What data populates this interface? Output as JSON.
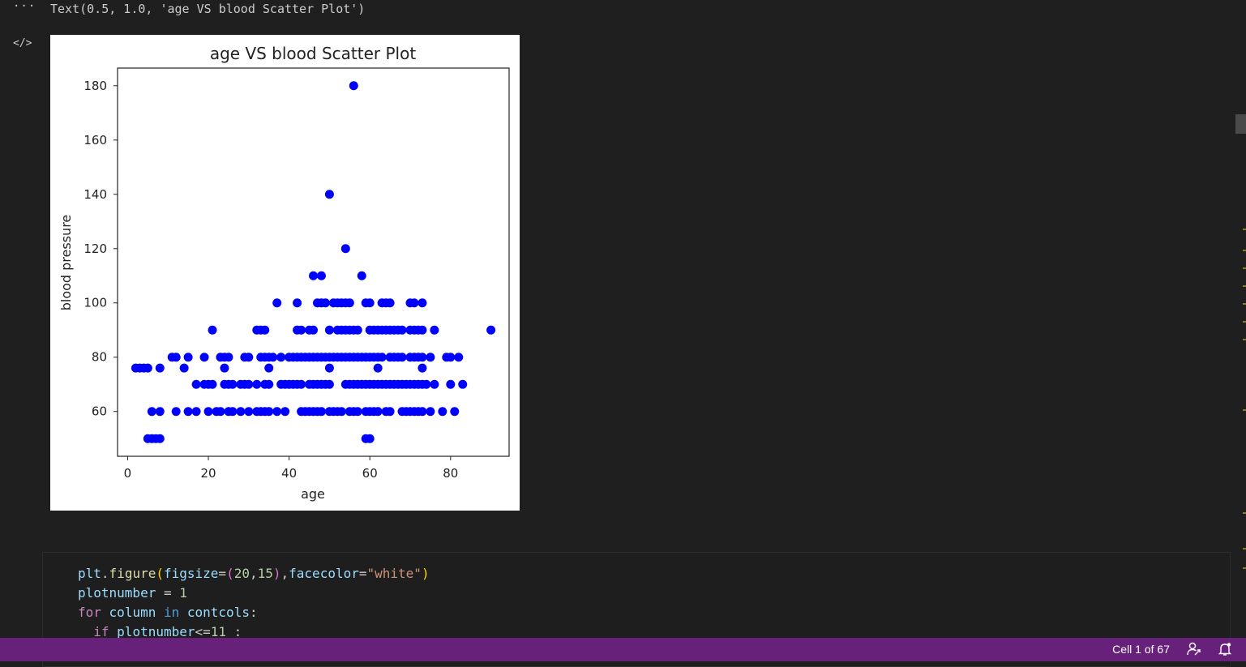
{
  "output": {
    "more_label": "···",
    "code_toggle_label": "</>",
    "text_line": "Text(0.5, 1.0, 'age VS blood Scatter Plot')"
  },
  "chart_data": {
    "type": "scatter",
    "title": "age VS blood Scatter Plot",
    "xlabel": "age",
    "ylabel": "blood pressure",
    "xlim": [
      -2.5,
      94.5
    ],
    "ylim": [
      43.5,
      186.5
    ],
    "xticks": [
      0,
      20,
      40,
      60,
      80
    ],
    "yticks": [
      60,
      80,
      100,
      120,
      140,
      160,
      180
    ],
    "color": "#0000ff",
    "points": [
      [
        2,
        76
      ],
      [
        3,
        76
      ],
      [
        4,
        76
      ],
      [
        5,
        76
      ],
      [
        8,
        76
      ],
      [
        14,
        76
      ],
      [
        24,
        76
      ],
      [
        35,
        76
      ],
      [
        50,
        76
      ],
      [
        62,
        76
      ],
      [
        73,
        76
      ],
      [
        5,
        50
      ],
      [
        6,
        50
      ],
      [
        7,
        50
      ],
      [
        8,
        50
      ],
      [
        59,
        50
      ],
      [
        60,
        50
      ],
      [
        6,
        60
      ],
      [
        8,
        60
      ],
      [
        12,
        60
      ],
      [
        15,
        60
      ],
      [
        17,
        60
      ],
      [
        20,
        60
      ],
      [
        22,
        60
      ],
      [
        23,
        60
      ],
      [
        25,
        60
      ],
      [
        26,
        60
      ],
      [
        28,
        60
      ],
      [
        30,
        60
      ],
      [
        32,
        60
      ],
      [
        33,
        60
      ],
      [
        34,
        60
      ],
      [
        35,
        60
      ],
      [
        37,
        60
      ],
      [
        39,
        60
      ],
      [
        43,
        60
      ],
      [
        44,
        60
      ],
      [
        45,
        60
      ],
      [
        46,
        60
      ],
      [
        47,
        60
      ],
      [
        48,
        60
      ],
      [
        50,
        60
      ],
      [
        51,
        60
      ],
      [
        52,
        60
      ],
      [
        53,
        60
      ],
      [
        55,
        60
      ],
      [
        56,
        60
      ],
      [
        57,
        60
      ],
      [
        59,
        60
      ],
      [
        60,
        60
      ],
      [
        61,
        60
      ],
      [
        62,
        60
      ],
      [
        64,
        60
      ],
      [
        65,
        60
      ],
      [
        68,
        60
      ],
      [
        69,
        60
      ],
      [
        70,
        60
      ],
      [
        71,
        60
      ],
      [
        72,
        60
      ],
      [
        73,
        60
      ],
      [
        75,
        60
      ],
      [
        78,
        60
      ],
      [
        81,
        60
      ],
      [
        17,
        70
      ],
      [
        19,
        70
      ],
      [
        20,
        70
      ],
      [
        21,
        70
      ],
      [
        24,
        70
      ],
      [
        25,
        70
      ],
      [
        26,
        70
      ],
      [
        28,
        70
      ],
      [
        29,
        70
      ],
      [
        30,
        70
      ],
      [
        32,
        70
      ],
      [
        34,
        70
      ],
      [
        35,
        70
      ],
      [
        38,
        70
      ],
      [
        39,
        70
      ],
      [
        40,
        70
      ],
      [
        41,
        70
      ],
      [
        42,
        70
      ],
      [
        43,
        70
      ],
      [
        45,
        70
      ],
      [
        46,
        70
      ],
      [
        47,
        70
      ],
      [
        48,
        70
      ],
      [
        49,
        70
      ],
      [
        50,
        70
      ],
      [
        54,
        70
      ],
      [
        55,
        70
      ],
      [
        56,
        70
      ],
      [
        57,
        70
      ],
      [
        58,
        70
      ],
      [
        59,
        70
      ],
      [
        60,
        70
      ],
      [
        61,
        70
      ],
      [
        62,
        70
      ],
      [
        63,
        70
      ],
      [
        64,
        70
      ],
      [
        65,
        70
      ],
      [
        66,
        70
      ],
      [
        67,
        70
      ],
      [
        68,
        70
      ],
      [
        69,
        70
      ],
      [
        70,
        70
      ],
      [
        71,
        70
      ],
      [
        72,
        70
      ],
      [
        73,
        70
      ],
      [
        74,
        70
      ],
      [
        76,
        70
      ],
      [
        80,
        70
      ],
      [
        83,
        70
      ],
      [
        11,
        80
      ],
      [
        12,
        80
      ],
      [
        15,
        80
      ],
      [
        19,
        80
      ],
      [
        23,
        80
      ],
      [
        24,
        80
      ],
      [
        25,
        80
      ],
      [
        29,
        80
      ],
      [
        30,
        80
      ],
      [
        33,
        80
      ],
      [
        34,
        80
      ],
      [
        35,
        80
      ],
      [
        36,
        80
      ],
      [
        38,
        80
      ],
      [
        40,
        80
      ],
      [
        41,
        80
      ],
      [
        42,
        80
      ],
      [
        43,
        80
      ],
      [
        44,
        80
      ],
      [
        45,
        80
      ],
      [
        46,
        80
      ],
      [
        47,
        80
      ],
      [
        48,
        80
      ],
      [
        49,
        80
      ],
      [
        50,
        80
      ],
      [
        51,
        80
      ],
      [
        52,
        80
      ],
      [
        53,
        80
      ],
      [
        54,
        80
      ],
      [
        55,
        80
      ],
      [
        56,
        80
      ],
      [
        57,
        80
      ],
      [
        58,
        80
      ],
      [
        59,
        80
      ],
      [
        60,
        80
      ],
      [
        61,
        80
      ],
      [
        62,
        80
      ],
      [
        63,
        80
      ],
      [
        65,
        80
      ],
      [
        66,
        80
      ],
      [
        67,
        80
      ],
      [
        68,
        80
      ],
      [
        70,
        80
      ],
      [
        71,
        80
      ],
      [
        72,
        80
      ],
      [
        73,
        80
      ],
      [
        75,
        80
      ],
      [
        79,
        80
      ],
      [
        80,
        80
      ],
      [
        82,
        80
      ],
      [
        21,
        90
      ],
      [
        32,
        90
      ],
      [
        33,
        90
      ],
      [
        34,
        90
      ],
      [
        42,
        90
      ],
      [
        43,
        90
      ],
      [
        45,
        90
      ],
      [
        46,
        90
      ],
      [
        50,
        90
      ],
      [
        52,
        90
      ],
      [
        53,
        90
      ],
      [
        54,
        90
      ],
      [
        55,
        90
      ],
      [
        56,
        90
      ],
      [
        57,
        90
      ],
      [
        60,
        90
      ],
      [
        61,
        90
      ],
      [
        62,
        90
      ],
      [
        63,
        90
      ],
      [
        64,
        90
      ],
      [
        65,
        90
      ],
      [
        66,
        90
      ],
      [
        67,
        90
      ],
      [
        68,
        90
      ],
      [
        70,
        90
      ],
      [
        71,
        90
      ],
      [
        72,
        90
      ],
      [
        73,
        90
      ],
      [
        76,
        90
      ],
      [
        90,
        90
      ],
      [
        37,
        100
      ],
      [
        42,
        100
      ],
      [
        47,
        100
      ],
      [
        48,
        100
      ],
      [
        49,
        100
      ],
      [
        51,
        100
      ],
      [
        52,
        100
      ],
      [
        53,
        100
      ],
      [
        54,
        100
      ],
      [
        55,
        100
      ],
      [
        59,
        100
      ],
      [
        60,
        100
      ],
      [
        63,
        100
      ],
      [
        64,
        100
      ],
      [
        65,
        100
      ],
      [
        70,
        100
      ],
      [
        71,
        100
      ],
      [
        73,
        100
      ],
      [
        46,
        110
      ],
      [
        48,
        110
      ],
      [
        58,
        110
      ],
      [
        54,
        120
      ],
      [
        50,
        140
      ],
      [
        56,
        180
      ]
    ]
  },
  "code": {
    "lines": [
      "plt.figure(figsize=(20,15),facecolor=\"white\")",
      "plotnumber = 1",
      "for column in contcols:",
      "  if plotnumber<=11 :"
    ]
  },
  "status": {
    "cell_count": "Cell 1 of 67",
    "feedback_icon": "feedback-icon",
    "bell_icon": "bell-icon"
  }
}
